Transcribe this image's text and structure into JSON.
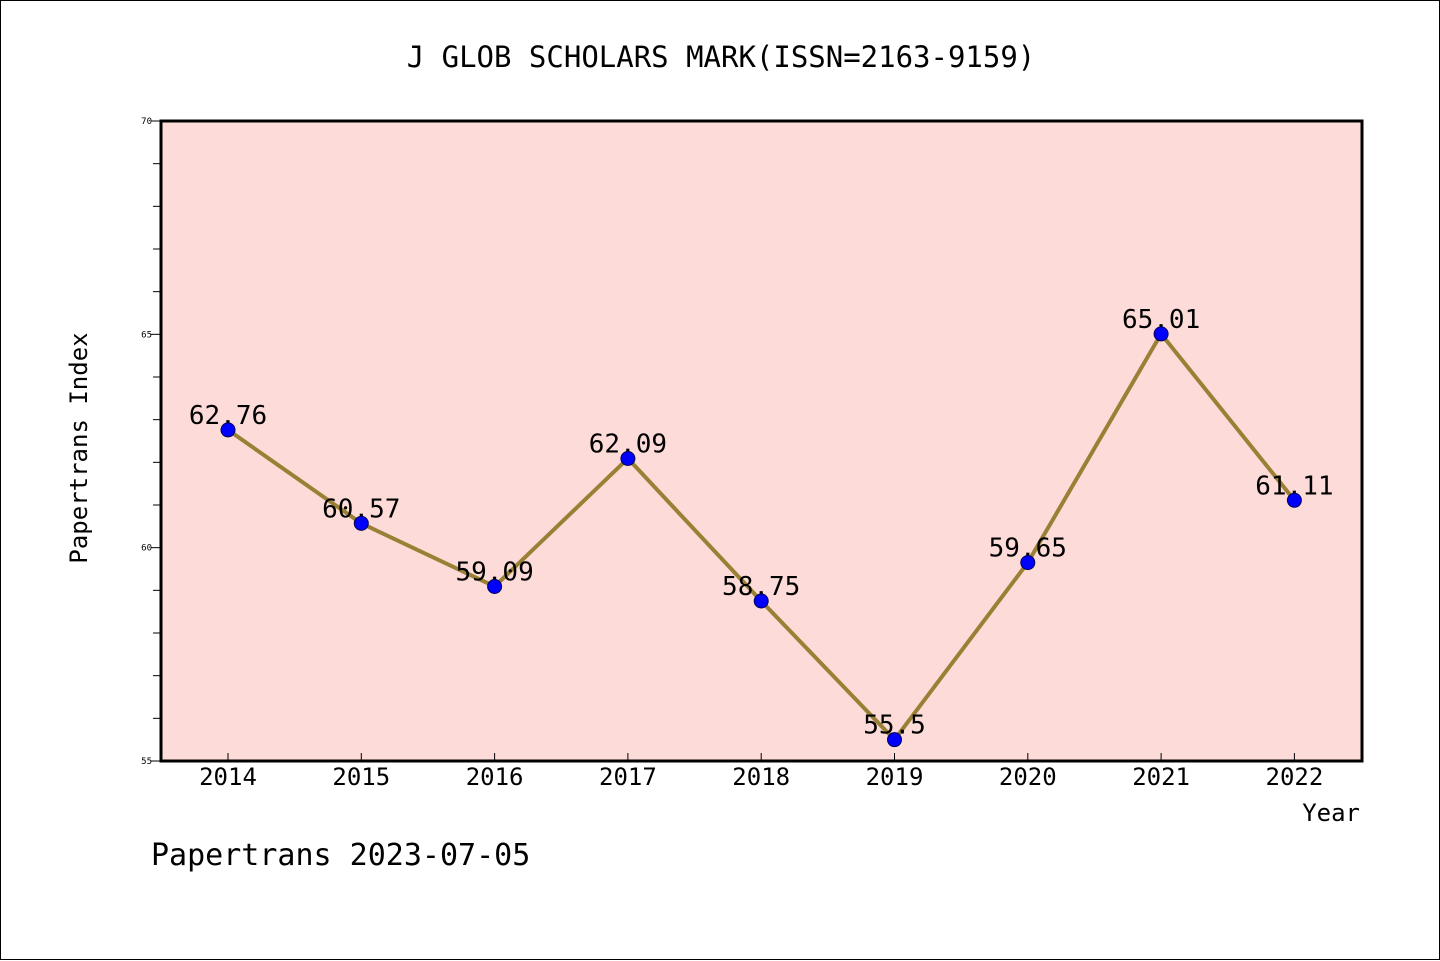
{
  "chart_data": {
    "type": "line",
    "title": "J GLOB SCHOLARS MARK(ISSN=2163-9159)",
    "xlabel": "Year",
    "ylabel": "Papertrans Index",
    "categories": [
      "2014",
      "2015",
      "2016",
      "2017",
      "2018",
      "2019",
      "2020",
      "2021",
      "2022"
    ],
    "series": [
      {
        "values": [
          62.76,
          60.57,
          59.09,
          62.09,
          58.75,
          55.5,
          59.65,
          65.01,
          61.11
        ],
        "labels": [
          "62.76",
          "60.57",
          "59.09",
          "62.09",
          "58.75",
          "55.5",
          "59.65",
          "65.01",
          "61.11"
        ]
      }
    ],
    "ylim": [
      55,
      70
    ],
    "yticks": [
      "55",
      "60",
      "65",
      "70"
    ],
    "grid": false,
    "colors": {
      "plot_background": "#fddbd8",
      "line": "#9a8035",
      "marker": "#0000ff"
    }
  },
  "footer": {
    "text": "Papertrans 2023-07-05"
  }
}
